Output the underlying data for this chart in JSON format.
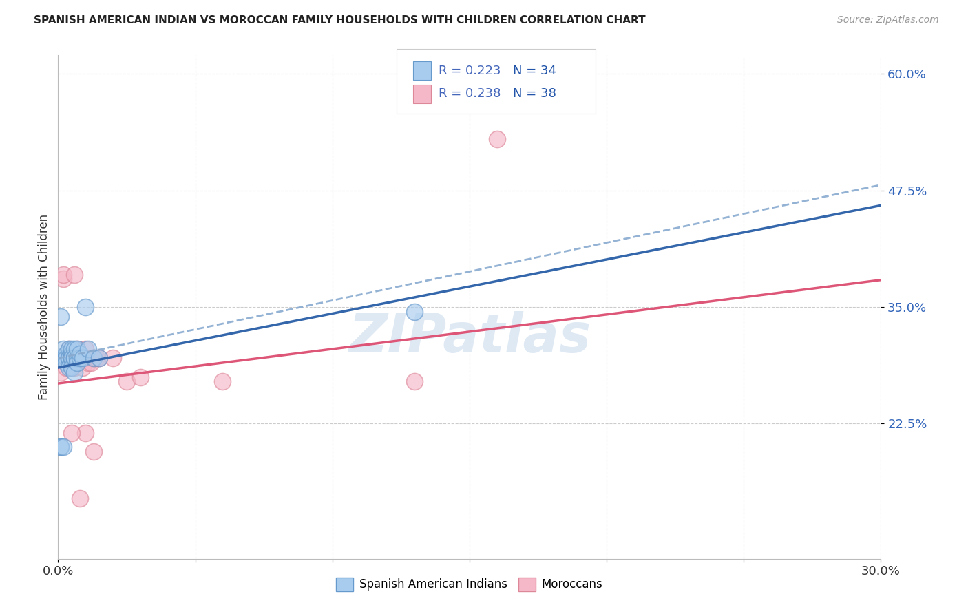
{
  "title": "SPANISH AMERICAN INDIAN VS MOROCCAN FAMILY HOUSEHOLDS WITH CHILDREN CORRELATION CHART",
  "source": "Source: ZipAtlas.com",
  "ylabel": "Family Households with Children",
  "xmin": 0.0,
  "xmax": 0.3,
  "ymin": 0.08,
  "ymax": 0.62,
  "yticks": [
    0.225,
    0.35,
    0.475,
    0.6
  ],
  "ytick_labels": [
    "22.5%",
    "35.0%",
    "47.5%",
    "60.0%"
  ],
  "xticks": [
    0.0,
    0.05,
    0.1,
    0.15,
    0.2,
    0.25,
    0.3
  ],
  "color_blue_fill": "#A8CCEE",
  "color_blue_edge": "#6699CC",
  "color_blue_line": "#3366AA",
  "color_blue_dashed": "#88AACF",
  "color_pink_fill": "#F5B8C8",
  "color_pink_edge": "#DD8899",
  "color_pink_line": "#DD5577",
  "watermark": "ZIPatlas",
  "legend_r1": "R = 0.223",
  "legend_n1": "N = 34",
  "legend_r2": "R = 0.238",
  "legend_n2": "N = 38",
  "legend_text_color": "#4466BB",
  "legend_n_color": "#2255AA",
  "blue_intercept": 0.285,
  "blue_slope": 0.58,
  "blue_dashed_intercept": 0.295,
  "blue_dashed_slope": 0.62,
  "pink_intercept": 0.268,
  "pink_slope": 0.37,
  "scatter_blue_x": [
    0.001,
    0.001,
    0.001,
    0.002,
    0.002,
    0.003,
    0.003,
    0.003,
    0.004,
    0.004,
    0.004,
    0.004,
    0.005,
    0.005,
    0.005,
    0.005,
    0.005,
    0.006,
    0.006,
    0.006,
    0.006,
    0.007,
    0.007,
    0.007,
    0.008,
    0.008,
    0.009,
    0.01,
    0.011,
    0.013,
    0.015,
    0.001,
    0.002,
    0.13
  ],
  "scatter_blue_y": [
    0.295,
    0.34,
    0.2,
    0.295,
    0.305,
    0.3,
    0.295,
    0.29,
    0.295,
    0.305,
    0.295,
    0.285,
    0.3,
    0.295,
    0.305,
    0.295,
    0.285,
    0.295,
    0.305,
    0.295,
    0.28,
    0.295,
    0.305,
    0.29,
    0.295,
    0.3,
    0.295,
    0.35,
    0.305,
    0.295,
    0.295,
    0.2,
    0.2,
    0.345
  ],
  "scatter_pink_x": [
    0.001,
    0.001,
    0.001,
    0.002,
    0.002,
    0.002,
    0.003,
    0.003,
    0.003,
    0.004,
    0.004,
    0.005,
    0.005,
    0.006,
    0.006,
    0.006,
    0.007,
    0.007,
    0.008,
    0.009,
    0.009,
    0.01,
    0.01,
    0.011,
    0.012,
    0.013,
    0.014,
    0.015,
    0.02,
    0.025,
    0.03,
    0.13,
    0.16,
    0.06,
    0.01,
    0.013,
    0.005,
    0.008
  ],
  "scatter_pink_y": [
    0.295,
    0.28,
    0.295,
    0.38,
    0.385,
    0.295,
    0.295,
    0.285,
    0.295,
    0.305,
    0.295,
    0.295,
    0.285,
    0.385,
    0.295,
    0.285,
    0.295,
    0.305,
    0.295,
    0.295,
    0.285,
    0.295,
    0.305,
    0.29,
    0.29,
    0.295,
    0.295,
    0.295,
    0.295,
    0.27,
    0.275,
    0.27,
    0.53,
    0.27,
    0.215,
    0.195,
    0.215,
    0.145
  ]
}
